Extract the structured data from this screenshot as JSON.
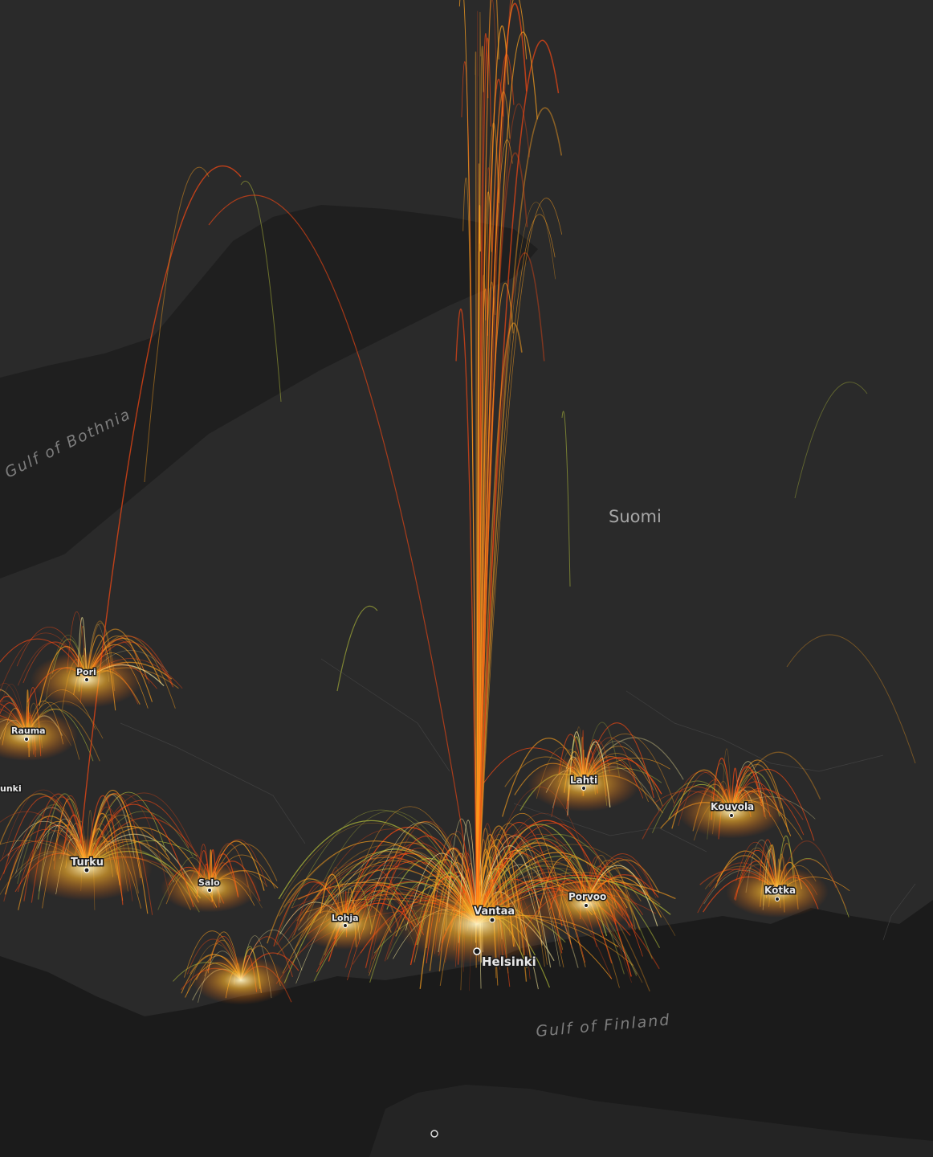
{
  "map": {
    "country_label": "Suomi",
    "water_labels": {
      "gulf_of_bothnia": "Gulf of Bothnia",
      "gulf_of_finland": "Gulf of Finland"
    },
    "cities": {
      "helsinki": "Helsinki",
      "vantaa": "Vantaa",
      "turku": "Turku",
      "pori": "Pori",
      "rauma": "Rauma",
      "uusikaupunki_partial": "unki",
      "salo": "Salo",
      "lohja": "Lohja",
      "lahti": "Lahti",
      "porvoo": "Porvoo",
      "kouvola": "Kouvola",
      "kotka": "Kotka"
    },
    "colors": {
      "land": "#2a2a2a",
      "sea": "#1b1b1b",
      "flow_low": "#ff4a12",
      "flow_mid": "#ffa21f",
      "flow_high": "#fff2a0",
      "flow_alt": "#b7c23a"
    }
  }
}
